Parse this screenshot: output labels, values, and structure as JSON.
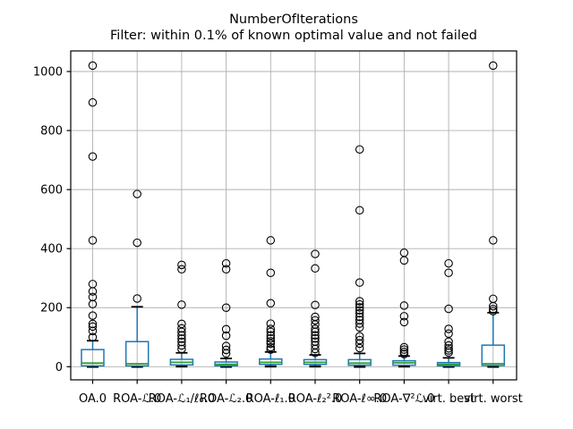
{
  "chart_data": {
    "type": "boxplot",
    "title": "NumberOfIterations",
    "subtitle": "Filter: within 0.1% of known optimal value and not failed",
    "categories": [
      "OA.0",
      "ROA-ℒ.0",
      "ROA-ℒ₁/ℓ₀.0",
      "ROA-ℒ₂.0",
      "ROA-ℓ₁.0",
      "ROA-ℓ₂².0",
      "ROA-ℓ∞.0",
      "ROA-∇²ℒ.0",
      "virt. best",
      "virt. worst"
    ],
    "xlabel": "",
    "ylabel": "",
    "yticks": [
      0,
      200,
      400,
      600,
      800,
      1000
    ],
    "ylim": [
      -45,
      1070
    ],
    "grid": true,
    "legend": "none",
    "series": [
      {
        "label": "OA.0",
        "whislo": 0,
        "q1": 3,
        "med": 12,
        "q3": 58,
        "whishi": 88,
        "fliers": [
          1020,
          895,
          712,
          428,
          280,
          255,
          236,
          212,
          173,
          145,
          136,
          121,
          100
        ]
      },
      {
        "label": "ROA-ℒ.0",
        "whislo": 0,
        "q1": 3,
        "med": 10,
        "q3": 85,
        "whishi": 203,
        "fliers": [
          585,
          420,
          231
        ]
      },
      {
        "label": "ROA-ℒ₁/ℓ₀.0",
        "whislo": 1,
        "q1": 6,
        "med": 15,
        "q3": 25,
        "whishi": 47,
        "fliers": [
          345,
          330,
          210,
          145,
          130,
          118,
          106,
          95,
          84,
          72,
          60
        ]
      },
      {
        "label": "ROA-ℒ₂.0",
        "whislo": 0,
        "q1": 3,
        "med": 8,
        "q3": 16,
        "whishi": 28,
        "fliers": [
          350,
          330,
          200,
          127,
          105,
          70,
          57,
          45
        ]
      },
      {
        "label": "ROA-ℓ₁.0",
        "whislo": 1,
        "q1": 8,
        "med": 15,
        "q3": 26,
        "whishi": 50,
        "fliers": [
          428,
          318,
          215,
          146,
          128,
          118,
          106,
          96,
          86,
          78,
          66,
          58
        ]
      },
      {
        "label": "ROA-ℓ₂².0",
        "whislo": 1,
        "q1": 8,
        "med": 15,
        "q3": 24,
        "whishi": 40,
        "fliers": [
          382,
          333,
          209,
          169,
          157,
          143,
          128,
          118,
          106,
          96,
          85,
          73,
          60,
          47
        ]
      },
      {
        "label": "ROA-ℓ∞.0",
        "whislo": 0,
        "q1": 5,
        "med": 12,
        "q3": 24,
        "whishi": 45,
        "fliers": [
          736,
          530,
          285,
          222,
          211,
          201,
          191,
          181,
          169,
          158,
          146,
          133,
          103,
          90,
          78,
          63
        ]
      },
      {
        "label": "ROA-∇²ℒ.0",
        "whislo": 1,
        "q1": 5,
        "med": 13,
        "q3": 20,
        "whishi": 36,
        "fliers": [
          386,
          360,
          207,
          171,
          151,
          66,
          58,
          50,
          43
        ]
      },
      {
        "label": "virt. best",
        "whislo": 0,
        "q1": 3,
        "med": 8,
        "q3": 14,
        "whishi": 30,
        "fliers": [
          350,
          318,
          196,
          128,
          112,
          85,
          72,
          62,
          55,
          48
        ]
      },
      {
        "label": "virt. worst",
        "whislo": 0,
        "q1": 4,
        "med": 10,
        "q3": 73,
        "whishi": 183,
        "fliers": [
          1020,
          428,
          230,
          205,
          195,
          188
        ]
      }
    ],
    "colors": {
      "box": "#1f77b4",
      "whisker": "#1f77b4",
      "median": "#2ca02c",
      "cap": "#000000",
      "flier": "#000000",
      "grid": "#b0b0b0",
      "axis": "#000000",
      "text": "#000000",
      "background": "#ffffff"
    }
  }
}
